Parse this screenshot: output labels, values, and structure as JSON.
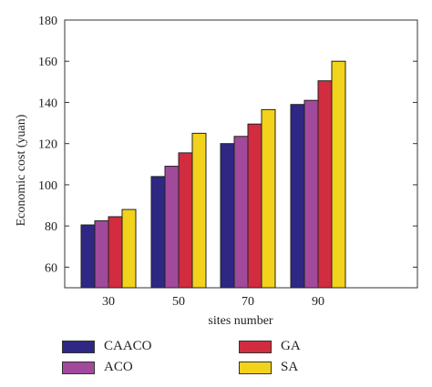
{
  "chart_data": {
    "type": "bar",
    "title": "",
    "xlabel": "sites number",
    "ylabel": "Economic cost (yuan)",
    "categories": [
      "30",
      "50",
      "70",
      "90"
    ],
    "ylim": [
      50,
      180
    ],
    "yticks": [
      60,
      80,
      100,
      120,
      140,
      160,
      180
    ],
    "grid": false,
    "legend_position": "bottom",
    "series": [
      {
        "name": "CAACO",
        "color": "#2E2783",
        "values": [
          80.5,
          104,
          120,
          139
        ]
      },
      {
        "name": "ACO",
        "color": "#A14A9B",
        "values": [
          82.5,
          109,
          123.5,
          141
        ]
      },
      {
        "name": "GA",
        "color": "#D12C3F",
        "values": [
          84.5,
          115.5,
          129.5,
          150.5
        ]
      },
      {
        "name": "SA",
        "color": "#F2D21B",
        "values": [
          88,
          125,
          136.5,
          160
        ]
      }
    ]
  }
}
